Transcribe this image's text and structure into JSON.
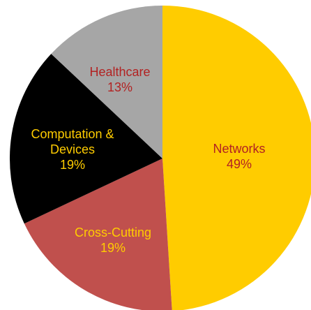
{
  "chart_data": {
    "type": "pie",
    "start_angle_deg": 0,
    "direction": "clockwise",
    "slices": [
      {
        "label_lines": [
          "Networks"
        ],
        "percent_label": "49%",
        "value": 49,
        "color": "#FFCC00",
        "label_color": "#B22222"
      },
      {
        "label_lines": [
          "Cross-Cutting"
        ],
        "percent_label": "19%",
        "value": 19,
        "color": "#C0504D",
        "label_color": "#FFCC00"
      },
      {
        "label_lines": [
          "Computation &",
          "Devices"
        ],
        "percent_label": "19%",
        "value": 19,
        "color": "#000000",
        "label_color": "#FFCC00"
      },
      {
        "label_lines": [
          "Healthcare"
        ],
        "percent_label": "13%",
        "value": 13,
        "color": "#A6A6A6",
        "label_color": "#B22222"
      }
    ]
  }
}
